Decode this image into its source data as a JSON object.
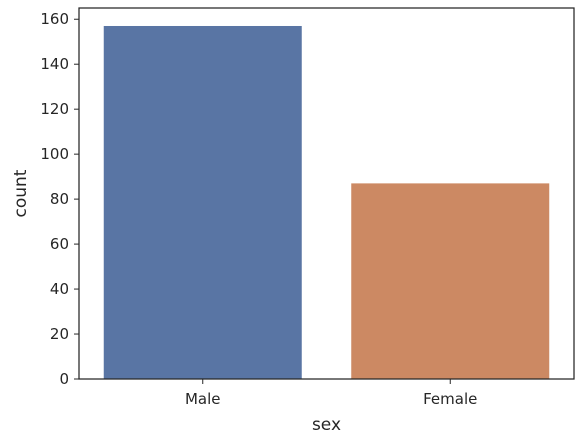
{
  "chart_data": {
    "type": "bar",
    "categories": [
      "Male",
      "Female"
    ],
    "values": [
      157,
      87
    ],
    "colors": [
      "#5975a4",
      "#cc8963"
    ],
    "title": "",
    "xlabel": "sex",
    "ylabel": "count",
    "ylim": [
      0,
      165
    ],
    "yticks": [
      "0",
      "20",
      "40",
      "60",
      "80",
      "100",
      "120",
      "140",
      "160"
    ],
    "grid": false,
    "legend": "none"
  }
}
